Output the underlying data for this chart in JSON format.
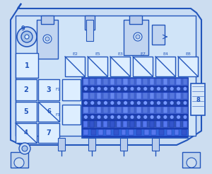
{
  "bg_color": "#ccddf0",
  "line_color": "#2255bb",
  "fill_light": "#ddeeff",
  "fill_mid": "#aabbdd",
  "fill_dark": "#2244aa",
  "fill_blue_row": "#3355cc",
  "figsize": [
    3.0,
    2.46
  ],
  "dpi": 100,
  "relay_labels": [
    "E2",
    "E5",
    "E3",
    "E7",
    "E4",
    "E8"
  ],
  "left_labels": [
    "1",
    "2",
    "3",
    "5",
    "6",
    "4",
    "7"
  ]
}
